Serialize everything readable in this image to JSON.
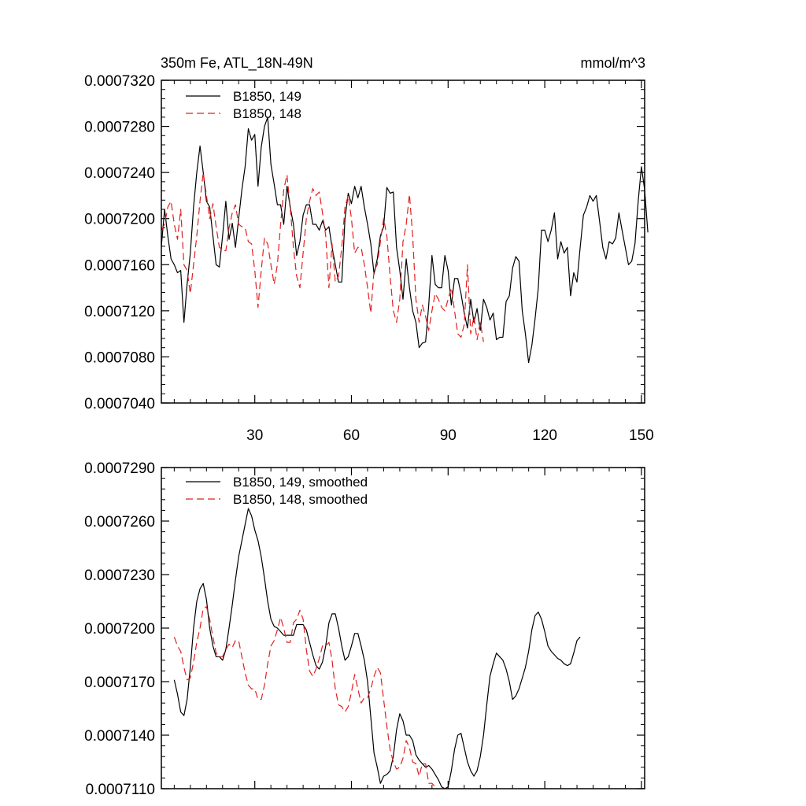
{
  "chart_data": [
    {
      "type": "line",
      "title_left": "350m Fe, ATL_18N-49N",
      "title_right": "mmol/m^3",
      "xlim": [
        1,
        151
      ],
      "ylim": [
        0.000704,
        0.000732
      ],
      "x_ticks": [
        30,
        60,
        90,
        120,
        150
      ],
      "y_ticks": [
        "0.0007040",
        "0.0007080",
        "0.0007120",
        "0.0007160",
        "0.0007200",
        "0.0007240",
        "0.0007280",
        "0.0007320"
      ],
      "y_tick_values": [
        0.000704,
        0.000708,
        0.000712,
        0.000716,
        0.00072,
        0.000724,
        0.000728,
        0.000732
      ],
      "show_x_labels": true,
      "legend_position": "top-left",
      "grid": false,
      "series": [
        {
          "name": "B1850, 149",
          "color": "#000000",
          "style": "solid",
          "x_start": 1,
          "values": [
            0.0007176,
            0.0007208,
            0.0007185,
            0.0007165,
            0.000716,
            0.0007153,
            0.0007155,
            0.000711,
            0.0007143,
            0.000717,
            0.000721,
            0.000724,
            0.0007263,
            0.000724,
            0.0007215,
            0.000721,
            0.0007185,
            0.000716,
            0.0007158,
            0.0007185,
            0.0007215,
            0.0007182,
            0.0007196,
            0.0007175,
            0.00072,
            0.0007225,
            0.0007245,
            0.0007278,
            0.0007268,
            0.0007273,
            0.0007228,
            0.0007262,
            0.000728,
            0.0007288,
            0.0007247,
            0.000723,
            0.0007212,
            0.0007212,
            0.0007195,
            0.0007228,
            0.000721,
            0.0007195,
            0.0007168,
            0.000718,
            0.0007203,
            0.0007212,
            0.0007212,
            0.0007195,
            0.0007195,
            0.000719,
            0.0007198,
            0.000719,
            0.0007193,
            0.0007175,
            0.000716,
            0.0007145,
            0.0007145,
            0.00072,
            0.0007222,
            0.0007213,
            0.0007228,
            0.0007218,
            0.0007228,
            0.000721,
            0.0007195,
            0.0007178,
            0.0007152,
            0.0007165,
            0.0007185,
            0.0007193,
            0.0007227,
            0.0007222,
            0.0007223,
            0.0007175,
            0.0007155,
            0.000713,
            0.0007165,
            0.000714,
            0.000712,
            0.000711,
            0.0007088,
            0.0007092,
            0.0007093,
            0.0007125,
            0.0007168,
            0.0007143,
            0.000714,
            0.000714,
            0.0007168,
            0.0007155,
            0.0007125,
            0.0007148,
            0.0007148,
            0.0007135,
            0.0007118,
            0.0007105,
            0.000713,
            0.000711,
            0.0007122,
            0.0007103,
            0.000713,
            0.0007123,
            0.0007112,
            0.0007118,
            0.0007095,
            0.0007097,
            0.0007097,
            0.0007128,
            0.0007133,
            0.0007157,
            0.0007167,
            0.0007163,
            0.000712,
            0.00071,
            0.0007075,
            0.000709,
            0.0007113,
            0.000714,
            0.000719,
            0.000719,
            0.000718,
            0.000719,
            0.0007205,
            0.0007165,
            0.000718,
            0.000717,
            0.0007175,
            0.0007133,
            0.0007153,
            0.0007145,
            0.0007175,
            0.0007203,
            0.000721,
            0.000722,
            0.0007215,
            0.000722,
            0.0007198,
            0.0007175,
            0.0007165,
            0.000718,
            0.0007178,
            0.0007183,
            0.0007205,
            0.000719,
            0.0007175,
            0.000716,
            0.0007163,
            0.0007178,
            0.0007215,
            0.0007245,
            0.0007225,
            0.0007188
          ]
        },
        {
          "name": "B1850, 148",
          "color": "#e02020",
          "style": "dashed",
          "x_start": 1,
          "values": [
            0.000719,
            0.0007195,
            0.000721,
            0.0007215,
            0.0007195,
            0.0007182,
            0.0007208,
            0.000716,
            0.0007155,
            0.0007135,
            0.000716,
            0.0007185,
            0.0007215,
            0.000724,
            0.000722,
            0.00072,
            0.0007213,
            0.0007193,
            0.0007175,
            0.0007173,
            0.0007172,
            0.0007192,
            0.0007205,
            0.0007212,
            0.0007195,
            0.0007193,
            0.0007192,
            0.000718,
            0.0007178,
            0.0007155,
            0.0007123,
            0.0007155,
            0.0007183,
            0.0007178,
            0.000716,
            0.0007143,
            0.000716,
            0.0007195,
            0.0007225,
            0.0007238,
            0.000721,
            0.0007175,
            0.000715,
            0.000714,
            0.000717,
            0.00072,
            0.0007215,
            0.0007226,
            0.000722,
            0.0007223,
            0.0007205,
            0.0007185,
            0.000714,
            0.0007178,
            0.0007145,
            0.000715,
            0.0007175,
            0.000721,
            0.000722,
            0.00072,
            0.000717,
            0.0007175,
            0.0007175,
            0.000716,
            0.000714,
            0.0007118,
            0.0007155,
            0.000716,
            0.000718,
            0.00072,
            0.0007185,
            0.000715,
            0.000712,
            0.000711,
            0.000713,
            0.000718,
            0.0007195,
            0.0007221,
            0.0007185,
            0.000713,
            0.000711,
            0.0007125,
            0.0007115,
            0.0007103,
            0.000712,
            0.0007135,
            0.000713,
            0.0007123,
            0.000712,
            0.000713,
            0.000714,
            0.000712,
            0.00071,
            0.0007097,
            0.0007108,
            0.000716,
            0.00071,
            0.0007115,
            0.0007095,
            0.000711,
            0.0007093
          ]
        }
      ]
    },
    {
      "type": "line",
      "xlim": [
        1,
        151
      ],
      "ylim": [
        0.000711,
        0.000729
      ],
      "x_ticks": [
        30,
        60,
        90,
        120,
        150
      ],
      "y_ticks": [
        "0.0007110",
        "0.0007140",
        "0.0007170",
        "0.0007200",
        "0.0007230",
        "0.0007260",
        "0.0007290"
      ],
      "y_tick_values": [
        0.000711,
        0.000714,
        0.000717,
        0.00072,
        0.000723,
        0.000726,
        0.000729
      ],
      "show_x_labels": false,
      "legend_position": "top-left",
      "grid": false,
      "series": [
        {
          "name": "B1850, 149, smoothed",
          "color": "#000000",
          "style": "solid",
          "x_start": 5,
          "values": [
            0.0007171,
            0.0007163,
            0.0007153,
            0.0007151,
            0.000716,
            0.0007178,
            0.00072,
            0.0007215,
            0.0007222,
            0.0007225,
            0.0007216,
            0.00072,
            0.000719,
            0.0007184,
            0.0007184,
            0.0007182,
            0.0007188,
            0.00072,
            0.0007213,
            0.0007227,
            0.000724,
            0.0007249,
            0.0007258,
            0.0007267,
            0.0007263,
            0.0007255,
            0.0007249,
            0.000724,
            0.0007228,
            0.0007215,
            0.0007205,
            0.0007201,
            0.00072,
            0.0007198,
            0.0007196,
            0.0007196,
            0.0007196,
            0.0007196,
            0.0007202,
            0.0007202,
            0.0007202,
            0.0007199,
            0.0007192,
            0.0007185,
            0.0007179,
            0.0007177,
            0.0007181,
            0.000719,
            0.0007203,
            0.0007208,
            0.0007208,
            0.00072,
            0.000719,
            0.0007182,
            0.0007184,
            0.000719,
            0.0007197,
            0.0007197,
            0.000719,
            0.0007182,
            0.000717,
            0.000715,
            0.000713,
            0.0007122,
            0.0007113,
            0.0007117,
            0.0007118,
            0.000712,
            0.0007128,
            0.0007143,
            0.0007152,
            0.0007148,
            0.000714,
            0.000714,
            0.0007137,
            0.0007129,
            0.0007126,
            0.0007124,
            0.0007122,
            0.0007123,
            0.0007121,
            0.0007118,
            0.0007115,
            0.0007111,
            0.000711,
            0.0007111,
            0.000712,
            0.0007132,
            0.000714,
            0.0007141,
            0.0007133,
            0.0007125,
            0.000712,
            0.0007117,
            0.000712,
            0.0007128,
            0.000714,
            0.0007157,
            0.0007173,
            0.000718,
            0.0007186,
            0.0007184,
            0.0007182,
            0.0007177,
            0.000717,
            0.000716,
            0.0007162,
            0.0007166,
            0.0007172,
            0.0007178,
            0.0007187,
            0.0007199,
            0.0007207,
            0.0007209,
            0.0007205,
            0.0007198,
            0.000719,
            0.0007187,
            0.0007185,
            0.0007183,
            0.0007182,
            0.000718,
            0.0007179,
            0.000718,
            0.0007186,
            0.0007193,
            0.0007195
          ]
        },
        {
          "name": "B1850, 148, smoothed",
          "color": "#e02020",
          "style": "dashed",
          "x_start": 5,
          "values": [
            0.0007195,
            0.000719,
            0.0007187,
            0.0007178,
            0.0007171,
            0.0007172,
            0.0007181,
            0.0007192,
            0.00072,
            0.0007211,
            0.0007212,
            0.0007205,
            0.0007195,
            0.0007186,
            0.0007184,
            0.0007184,
            0.0007188,
            0.0007191,
            0.0007189,
            0.0007193,
            0.0007193,
            0.0007184,
            0.0007175,
            0.0007168,
            0.0007166,
            0.0007166,
            0.000716,
            0.000716,
            0.0007168,
            0.000718,
            0.000719,
            0.0007193,
            0.0007199,
            0.0007206,
            0.00072,
            0.0007192,
            0.0007192,
            0.0007203,
            0.0007205,
            0.000721,
            0.0007205,
            0.0007188,
            0.0007176,
            0.0007173,
            0.0007177,
            0.0007183,
            0.000719,
            0.000719,
            0.0007192,
            0.0007182,
            0.0007166,
            0.0007157,
            0.0007156,
            0.0007153,
            0.0007156,
            0.0007164,
            0.0007174,
            0.0007166,
            0.0007158,
            0.0007161,
            0.0007161,
            0.0007166,
            0.0007173,
            0.0007178,
            0.0007175,
            0.000716,
            0.0007145,
            0.0007132,
            0.0007125,
            0.0007121,
            0.0007122,
            0.0007127,
            0.0007137,
            0.0007133,
            0.0007125,
            0.0007124,
            0.0007117,
            0.0007124,
            0.0007124,
            0.0007113,
            0.0007113,
            0.0007111
          ]
        }
      ]
    }
  ]
}
